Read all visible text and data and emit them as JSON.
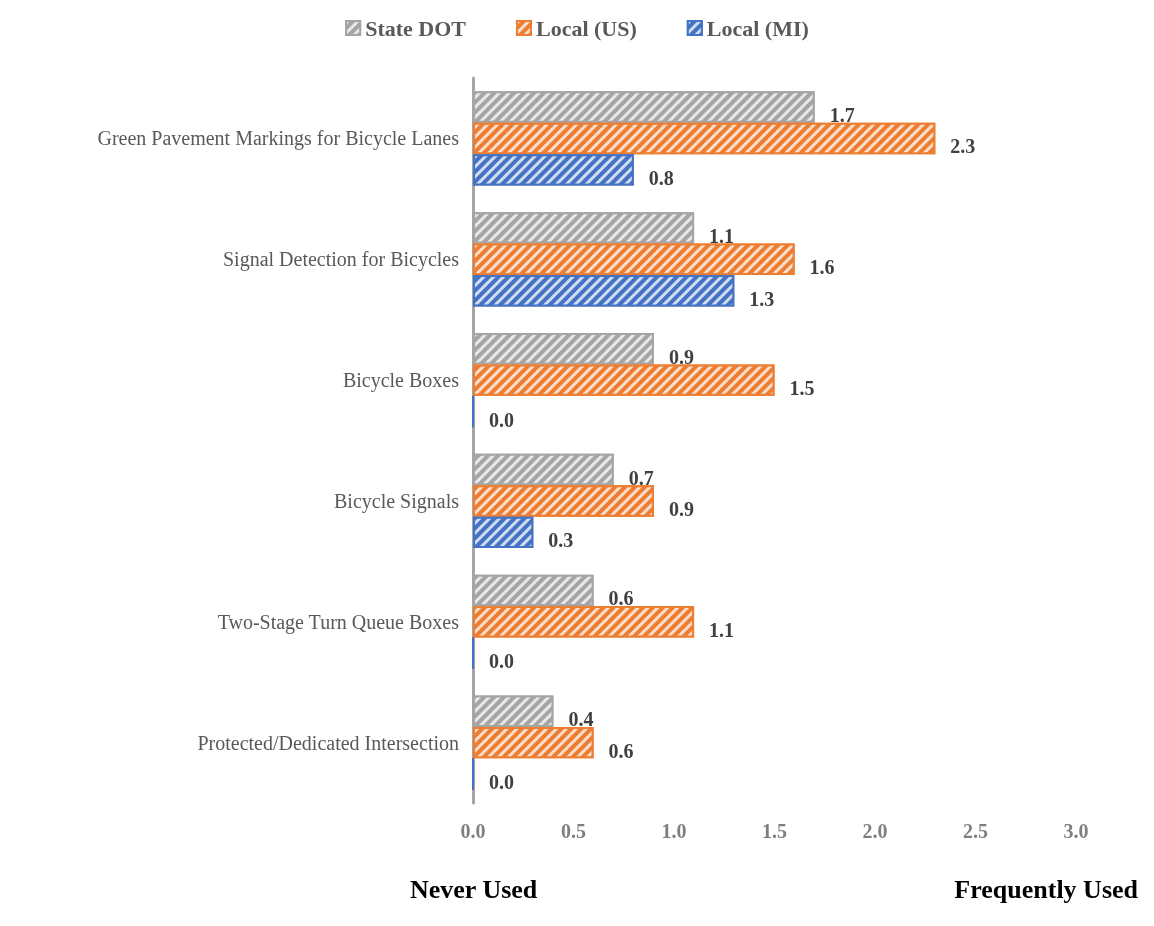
{
  "chart_data": {
    "type": "bar",
    "orientation": "horizontal",
    "categories": [
      "Green Pavement Markings for Bicycle Lanes",
      "Signal Detection for Bicycles",
      "Bicycle Boxes",
      "Bicycle Signals",
      "Two-Stage Turn Queue Boxes",
      "Protected/Dedicated Intersection"
    ],
    "series": [
      {
        "name": "State DOT",
        "color": "#a5a5a5",
        "values": [
          1.7,
          1.1,
          0.9,
          0.7,
          0.6,
          0.4
        ],
        "value_labels": [
          "1.7",
          "1.1",
          "0.9",
          "0.7",
          "0.6",
          "0.4"
        ]
      },
      {
        "name": "Local (US)",
        "color": "#ed7d31",
        "values": [
          2.3,
          1.6,
          1.5,
          0.9,
          1.1,
          0.6
        ],
        "value_labels": [
          "2.3",
          "1.6",
          "1.5",
          "0.9",
          "1.1",
          "0.6"
        ]
      },
      {
        "name": "Local (MI)",
        "color": "#4472c4",
        "values": [
          0.8,
          1.3,
          0.0,
          0.3,
          0.0,
          0.0
        ],
        "value_labels": [
          "0.8",
          "1.3",
          "0.0",
          "0.3",
          "0.0",
          "0.0"
        ]
      }
    ],
    "xlim": [
      0,
      3
    ],
    "xticks": [
      {
        "value": 0,
        "label": "0.0"
      },
      {
        "value": 0.5,
        "label": "0.5"
      },
      {
        "value": 1,
        "label": "1.0"
      },
      {
        "value": 1.5,
        "label": "1.5"
      },
      {
        "value": 2,
        "label": "2.0"
      },
      {
        "value": 2.5,
        "label": "2.5"
      },
      {
        "value": 3,
        "label": "3.0"
      }
    ],
    "grid": false,
    "legend": "top",
    "annotations": [
      "Never Used",
      "Frequently Used"
    ]
  }
}
